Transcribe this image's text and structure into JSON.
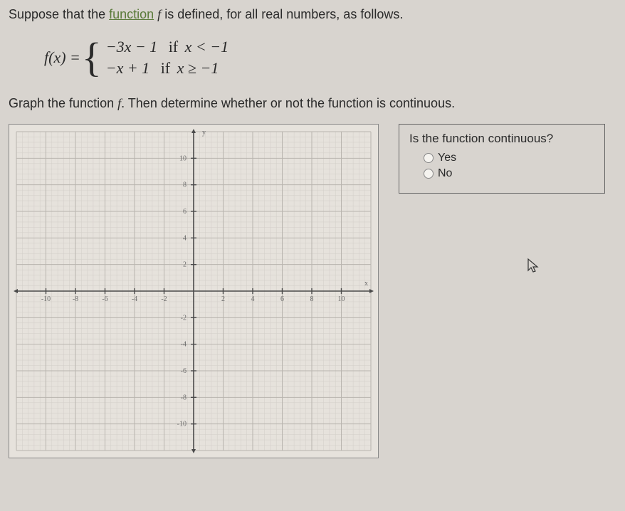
{
  "intro_text_pre": "Suppose that the ",
  "intro_link": "function",
  "intro_text_mid": " ",
  "intro_f": "f",
  "intro_text_post": " is defined, for all real numbers, as follows.",
  "func_name": "f(x) = ",
  "piece1_expr": "−3x − 1",
  "piece1_cond_if": "if",
  "piece1_cond": "x < −1",
  "piece2_expr": "−x + 1",
  "piece2_cond_if": "if",
  "piece2_cond": "x ≥ −1",
  "task_pre": "Graph the function ",
  "task_f": "f",
  "task_post": ". Then determine whether or not the function is continuous.",
  "question": "Is the function continuous?",
  "option_yes": "Yes",
  "option_no": "No",
  "graph": {
    "xmin": -12,
    "xmax": 12,
    "ymin": -12,
    "ymax": 12,
    "tick_step": 2,
    "minor_per_major": 5,
    "y_label": "y",
    "x_label": "x",
    "x_tick_labels": [
      -10,
      -8,
      -6,
      -4,
      -2,
      2,
      4,
      6,
      8,
      10
    ],
    "y_tick_labels": [
      -10,
      -8,
      -6,
      -4,
      -2,
      2,
      4,
      6,
      8,
      10
    ],
    "background": "#e6e2dc",
    "major_grid": "#b8b4ae",
    "minor_grid": "#d2cec8",
    "axis_color": "#4a4a4a",
    "label_color": "#6a6a6a",
    "label_fontsize": 10
  }
}
